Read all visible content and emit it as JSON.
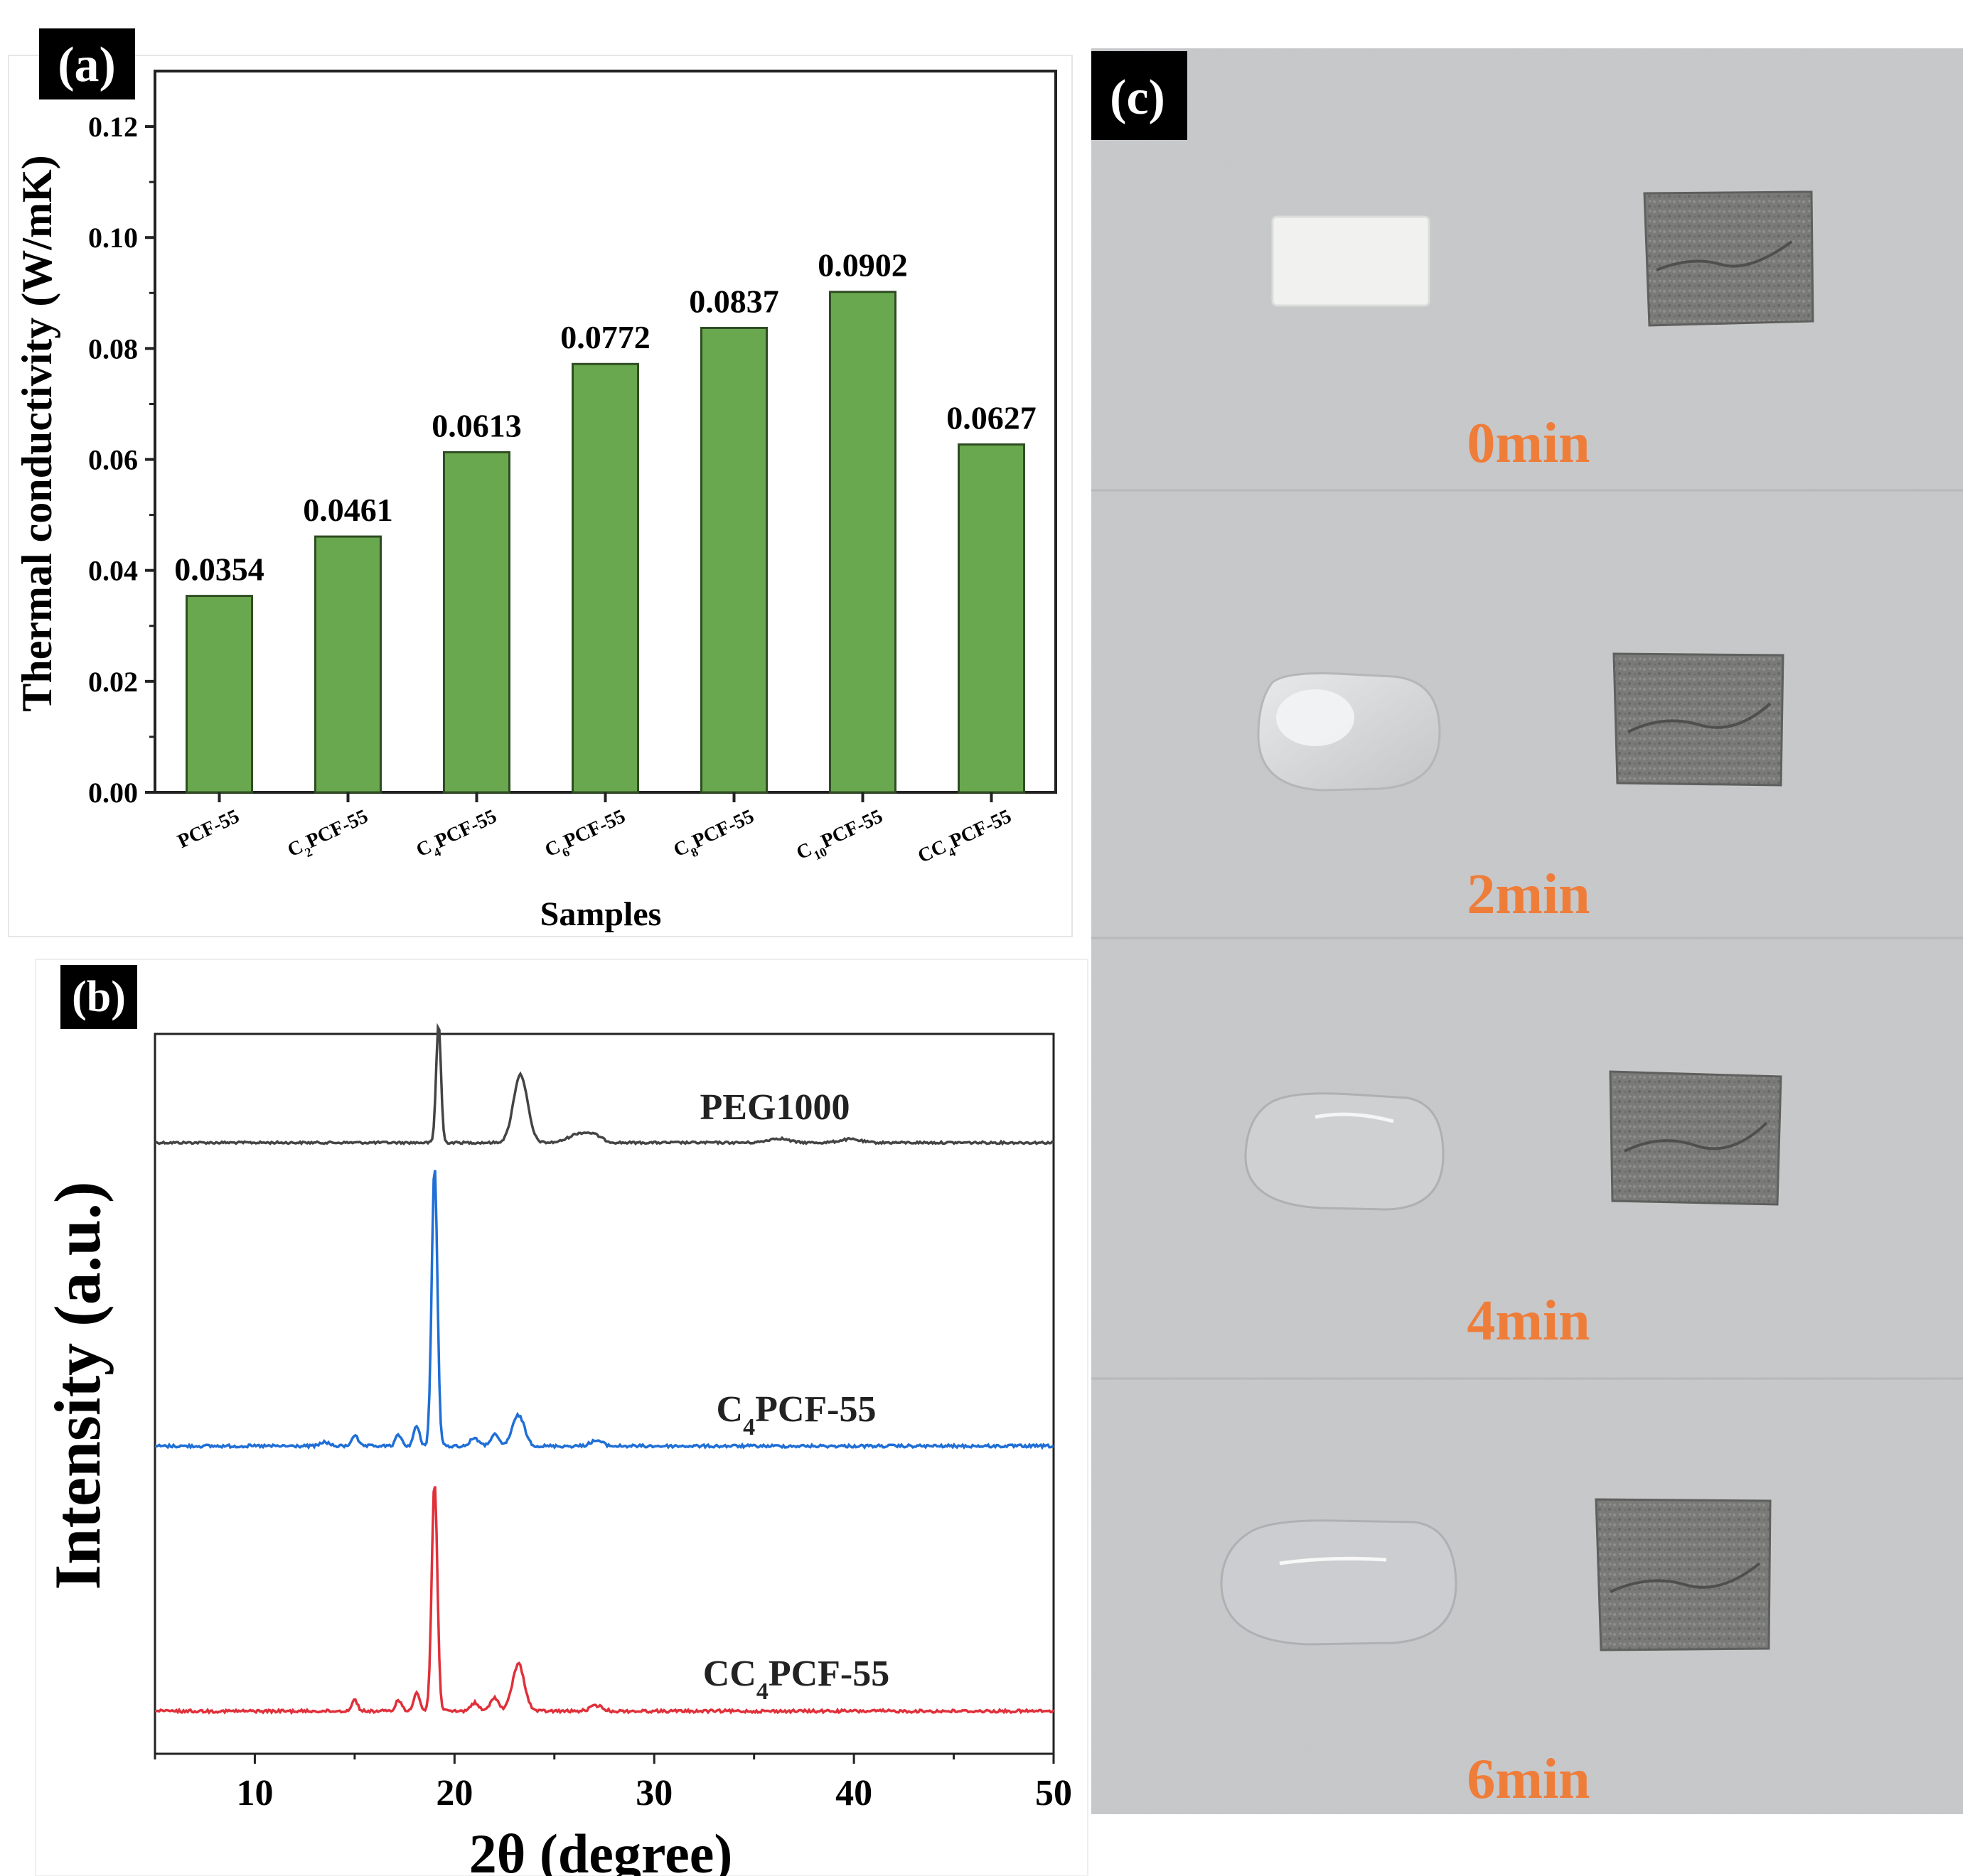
{
  "panel_a": {
    "label": "(a)"
  },
  "panel_b": {
    "label": "(b)"
  },
  "panel_c": {
    "label": "(c)",
    "time_labels": [
      "0min",
      "2min",
      "4min",
      "6min"
    ],
    "label_color": "#ef7d3a",
    "background_color": "#c9cacc"
  },
  "chart_data": [
    {
      "type": "bar",
      "panel": "(a)",
      "categories": [
        {
          "parts": [
            {
              "t": "PCF-55",
              "sub": false
            }
          ]
        },
        {
          "parts": [
            {
              "t": "C",
              "sub": false
            },
            {
              "t": "2",
              "sub": true
            },
            {
              "t": "PCF-55",
              "sub": false
            }
          ]
        },
        {
          "parts": [
            {
              "t": "C",
              "sub": false
            },
            {
              "t": "4",
              "sub": true
            },
            {
              "t": "PCF-55",
              "sub": false
            }
          ]
        },
        {
          "parts": [
            {
              "t": "C",
              "sub": false
            },
            {
              "t": "6",
              "sub": true
            },
            {
              "t": "PCF-55",
              "sub": false
            }
          ]
        },
        {
          "parts": [
            {
              "t": "C",
              "sub": false
            },
            {
              "t": "8",
              "sub": true
            },
            {
              "t": "PCF-55",
              "sub": false
            }
          ]
        },
        {
          "parts": [
            {
              "t": "C",
              "sub": false
            },
            {
              "t": "10",
              "sub": true
            },
            {
              "t": "PCF-55",
              "sub": false
            }
          ]
        },
        {
          "parts": [
            {
              "t": "CC",
              "sub": false
            },
            {
              "t": "4",
              "sub": true
            },
            {
              "t": "PCF-55",
              "sub": false
            }
          ]
        }
      ],
      "values": [
        0.0354,
        0.0461,
        0.0613,
        0.0772,
        0.0837,
        0.0902,
        0.0627
      ],
      "data_labels": [
        "0.0354",
        "0.0461",
        "0.0613",
        "0.0772",
        "0.0837",
        "0.0902",
        "0.0627"
      ],
      "xlabel": "Samples",
      "ylabel": "Thermal conductivity (W/mK)",
      "ylim": [
        0,
        0.13
      ],
      "yticks": [
        0.0,
        0.02,
        0.04,
        0.06,
        0.08,
        0.1,
        0.12
      ],
      "ytick_labels": [
        "0.00",
        "0.02",
        "0.04",
        "0.06",
        "0.08",
        "0.10",
        "0.12"
      ],
      "bar_color": "#6aa84f"
    },
    {
      "type": "line",
      "panel": "(b)",
      "xlabel": "2θ (degree)",
      "ylabel": "Intensity (a.u.)",
      "xlim": [
        5,
        50
      ],
      "xticks": [
        10,
        20,
        30,
        40,
        50
      ],
      "xtick_labels": [
        "10",
        "20",
        "30",
        "40",
        "50"
      ],
      "series": [
        {
          "name": "PEG1000",
          "label_parts": [
            {
              "t": "PEG1000",
              "sub": false
            }
          ],
          "color": "#444444",
          "baseline": 0.0,
          "peaks": [
            [
              19.2,
              0.28,
              0.12
            ],
            [
              23.3,
              0.16,
              0.35
            ],
            [
              26.2,
              0.02,
              0.5
            ],
            [
              27.0,
              0.015,
              0.4
            ],
            [
              36.2,
              0.01,
              0.5
            ],
            [
              39.8,
              0.008,
              0.5
            ]
          ]
        },
        {
          "name": "C4PCF-55",
          "label_parts": [
            {
              "t": "C",
              "sub": false
            },
            {
              "t": "4",
              "sub": true
            },
            {
              "t": "PCF-55",
              "sub": false
            }
          ],
          "color": "#1f6fd6",
          "baseline": 0.0,
          "peaks": [
            [
              19.0,
              1.0,
              0.14
            ],
            [
              15.0,
              0.04,
              0.15
            ],
            [
              17.2,
              0.04,
              0.15
            ],
            [
              18.1,
              0.07,
              0.15
            ],
            [
              21.0,
              0.03,
              0.2
            ],
            [
              22.0,
              0.04,
              0.2
            ],
            [
              23.2,
              0.11,
              0.3
            ],
            [
              27.1,
              0.02,
              0.3
            ],
            [
              13.5,
              0.015,
              0.2
            ]
          ]
        },
        {
          "name": "CC4PCF-55",
          "label_parts": [
            {
              "t": "CC",
              "sub": false
            },
            {
              "t": "4",
              "sub": true
            },
            {
              "t": "PCF-55",
              "sub": false
            }
          ],
          "color": "#e0303a",
          "baseline": 0.0,
          "peaks": [
            [
              19.0,
              0.83,
              0.14
            ],
            [
              15.0,
              0.04,
              0.15
            ],
            [
              17.2,
              0.04,
              0.15
            ],
            [
              18.1,
              0.07,
              0.15
            ],
            [
              21.0,
              0.03,
              0.2
            ],
            [
              22.0,
              0.05,
              0.2
            ],
            [
              23.2,
              0.17,
              0.3
            ],
            [
              27.1,
              0.02,
              0.3
            ]
          ]
        }
      ]
    }
  ]
}
